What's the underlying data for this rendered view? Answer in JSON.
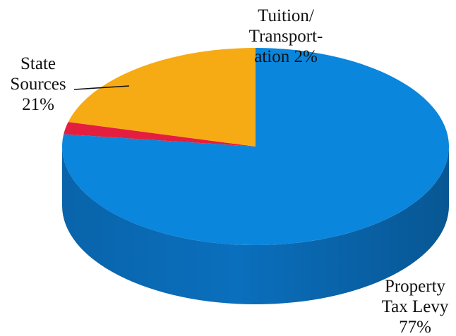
{
  "chart_data": {
    "type": "pie",
    "title": "",
    "style": "3d",
    "slices": [
      {
        "category": "Property Tax Levy",
        "label_lines": [
          "Property",
          "Tax Levy",
          "77%"
        ],
        "value": 77,
        "color": "#0a86dc",
        "side_color": "#0a6fbd"
      },
      {
        "category": "Tuition/ Transportation",
        "label_lines": [
          "Tuition/",
          "Transport-",
          "ation 2%"
        ],
        "value": 2,
        "color": "#e41e3f",
        "side_color": "#b5142e"
      },
      {
        "category": "State Sources",
        "label_lines": [
          "State",
          "Sources",
          "21%"
        ],
        "value": 21,
        "color": "#f6ab14",
        "side_color": "#d98f0a"
      }
    ]
  }
}
